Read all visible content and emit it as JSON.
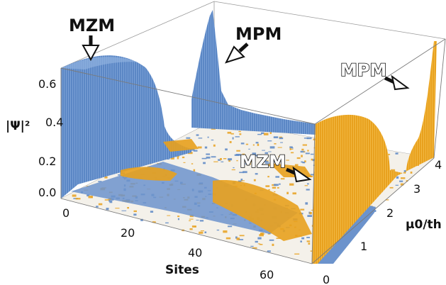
{
  "chart_data": {
    "type": "surface3d",
    "x_axis": {
      "label": "Sites",
      "ticks": [
        "0",
        "20",
        "40",
        "60"
      ],
      "range": [
        0,
        70
      ]
    },
    "y_axis": {
      "label": "μ0/th",
      "ticks": [
        "0",
        "1",
        "2",
        "3",
        "4"
      ],
      "range": [
        0,
        4
      ]
    },
    "z_axis": {
      "label": "|Ψ|²",
      "ticks": [
        "0.0",
        "0.2",
        "0.4",
        "0.6"
      ],
      "range": [
        0,
        0.72
      ]
    },
    "series": [
      {
        "color": "#5b87c5",
        "edge_profile_at_site_0_vs_mu": [
          [
            0,
            0.66
          ],
          [
            0.3,
            0.67
          ],
          [
            0.6,
            0.66
          ],
          [
            0.9,
            0.6
          ],
          [
            1.1,
            0.5
          ],
          [
            1.25,
            0.3
          ],
          [
            1.35,
            0.15
          ],
          [
            1.5,
            0.05
          ],
          [
            2.0,
            0.03
          ],
          [
            3.0,
            0.02
          ],
          [
            4.0,
            0.01
          ]
        ],
        "back_wall_at_mu_4_vs_site": [
          [
            0,
            0.0
          ],
          [
            2,
            0.05
          ],
          [
            4,
            0.12
          ],
          [
            6,
            0.22
          ],
          [
            8,
            0.36
          ],
          [
            10,
            0.52
          ],
          [
            11,
            0.6
          ],
          [
            12,
            0.72
          ],
          [
            13,
            0.3
          ],
          [
            16,
            0.12
          ],
          [
            20,
            0.06
          ],
          [
            30,
            0.03
          ],
          [
            40,
            0.02
          ],
          [
            50,
            0.01
          ]
        ]
      },
      {
        "color": "#e8a11e",
        "edge_profile_at_site_69_vs_mu": [
          [
            0,
            0.0
          ],
          [
            0.4,
            0.1
          ],
          [
            0.8,
            0.22
          ],
          [
            1.2,
            0.34
          ],
          [
            1.6,
            0.4
          ],
          [
            2.0,
            0.38
          ],
          [
            2.4,
            0.28
          ],
          [
            2.7,
            0.1
          ],
          [
            3.0,
            0.05
          ],
          [
            3.3,
            0.15
          ],
          [
            3.6,
            0.35
          ],
          [
            3.9,
            0.62
          ],
          [
            4.0,
            0.7
          ]
        ]
      }
    ],
    "annotations": [
      {
        "text": "MZM",
        "style": "solid"
      },
      {
        "text": "MPM",
        "style": "solid"
      },
      {
        "text": "MPM",
        "style": "outline"
      },
      {
        "text": "MZM",
        "style": "outline"
      }
    ]
  }
}
